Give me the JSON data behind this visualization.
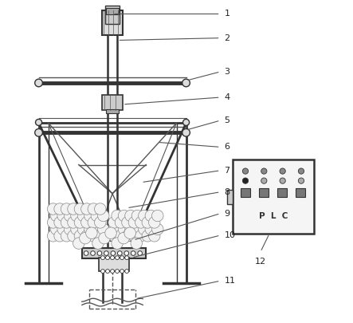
{
  "bg_color": "#ffffff",
  "line_color": "#555555",
  "dark_color": "#333333",
  "light_color": "#aaaaaa"
}
